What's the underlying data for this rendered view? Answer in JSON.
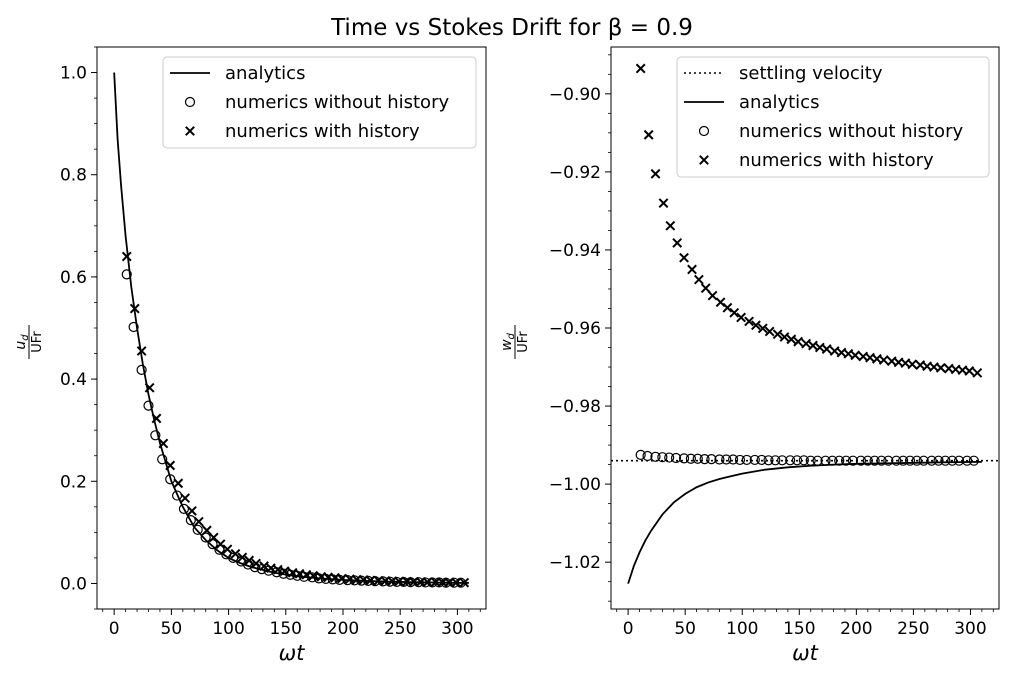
{
  "figure": {
    "title": "Time vs Stokes Drift for β = 0.9"
  },
  "chart_data": [
    {
      "type": "line",
      "xlabel": "ωt",
      "ylabel": "u_d / UFr",
      "xlim": [
        -15,
        325
      ],
      "ylim": [
        -0.05,
        1.05
      ],
      "xticks": [
        0,
        50,
        100,
        150,
        200,
        250,
        300
      ],
      "yticks": [
        0.0,
        0.2,
        0.4,
        0.6,
        0.8,
        1.0
      ],
      "ytick_labels": [
        "0.0",
        "0.2",
        "0.4",
        "0.6",
        "0.8",
        "1.0"
      ],
      "grid": false,
      "legend": "top-right",
      "series": [
        {
          "name": "analytics",
          "kind": "line",
          "x": [
            0,
            3,
            6,
            10,
            15,
            20,
            25,
            30,
            35,
            40,
            50,
            60,
            70,
            80,
            90,
            100,
            110,
            120,
            140,
            160,
            180,
            200,
            220,
            240,
            260,
            280,
            300,
            310
          ],
          "y": [
            1.0,
            0.87,
            0.78,
            0.68,
            0.58,
            0.5,
            0.43,
            0.37,
            0.32,
            0.275,
            0.2,
            0.15,
            0.11,
            0.085,
            0.065,
            0.05,
            0.04,
            0.032,
            0.021,
            0.014,
            0.01,
            0.007,
            0.005,
            0.0035,
            0.0025,
            0.0018,
            0.0012,
            0.001
          ]
        },
        {
          "name": "numerics without history",
          "kind": "circle",
          "x": [
            11,
            17,
            24,
            30,
            36,
            42,
            49,
            55,
            61,
            67,
            73,
            80,
            86,
            92,
            98,
            104,
            111,
            117,
            123,
            129,
            135,
            142,
            148,
            154,
            160,
            166,
            173,
            179,
            185,
            191,
            197,
            204,
            210,
            216,
            222,
            228,
            235,
            241,
            247,
            253,
            259,
            266,
            272,
            278,
            284,
            290,
            297,
            303
          ],
          "y": [
            0.605,
            0.502,
            0.418,
            0.348,
            0.29,
            0.243,
            0.204,
            0.172,
            0.146,
            0.124,
            0.105,
            0.09,
            0.077,
            0.066,
            0.057,
            0.05,
            0.043,
            0.037,
            0.032,
            0.028,
            0.025,
            0.022,
            0.019,
            0.017,
            0.015,
            0.013,
            0.012,
            0.01,
            0.009,
            0.008,
            0.007,
            0.0065,
            0.006,
            0.0055,
            0.005,
            0.0045,
            0.004,
            0.0035,
            0.003,
            0.003,
            0.0025,
            0.0025,
            0.002,
            0.002,
            0.002,
            0.0015,
            0.0015,
            0.0015
          ]
        },
        {
          "name": "numerics with history",
          "kind": "cross",
          "x": [
            11,
            18,
            24,
            31,
            37,
            43,
            49,
            56,
            62,
            68,
            74,
            81,
            87,
            93,
            99,
            106,
            112,
            118,
            124,
            131,
            137,
            143,
            149,
            156,
            162,
            168,
            174,
            181,
            187,
            193,
            199,
            206,
            212,
            218,
            224,
            231,
            237,
            243,
            249,
            256,
            262,
            268,
            274,
            281,
            287,
            293,
            299,
            306
          ],
          "y": [
            0.64,
            0.538,
            0.455,
            0.383,
            0.323,
            0.274,
            0.231,
            0.196,
            0.167,
            0.142,
            0.121,
            0.104,
            0.09,
            0.077,
            0.067,
            0.058,
            0.051,
            0.045,
            0.039,
            0.034,
            0.03,
            0.027,
            0.024,
            0.021,
            0.019,
            0.017,
            0.015,
            0.013,
            0.012,
            0.011,
            0.0095,
            0.0085,
            0.0075,
            0.007,
            0.006,
            0.0055,
            0.005,
            0.0045,
            0.004,
            0.0037,
            0.0033,
            0.003,
            0.0027,
            0.0025,
            0.0022,
            0.002,
            0.0018,
            0.0016
          ]
        }
      ]
    },
    {
      "type": "line",
      "xlabel": "ωt",
      "ylabel": "w_d / UFr",
      "xlim": [
        -15,
        325
      ],
      "ylim": [
        -1.032,
        -0.888
      ],
      "xticks": [
        0,
        50,
        100,
        150,
        200,
        250,
        300
      ],
      "yticks": [
        -1.02,
        -1.0,
        -0.98,
        -0.96,
        -0.94,
        -0.92,
        -0.9
      ],
      "ytick_labels": [
        "−1.02",
        "−1.00",
        "−0.98",
        "−0.96",
        "−0.94",
        "−0.92",
        "−0.90"
      ],
      "grid": false,
      "legend": "top-right",
      "series": [
        {
          "name": "settling velocity",
          "kind": "dotted",
          "x": [
            -15,
            325
          ],
          "y": [
            -0.994,
            -0.994
          ]
        },
        {
          "name": "analytics",
          "kind": "line",
          "x": [
            0,
            5,
            10,
            15,
            20,
            30,
            40,
            50,
            60,
            70,
            80,
            90,
            100,
            110,
            120,
            140,
            160,
            180,
            200,
            240,
            280,
            310
          ],
          "y": [
            -1.0255,
            -1.021,
            -1.0175,
            -1.0145,
            -1.012,
            -1.0078,
            -1.0047,
            -1.0025,
            -1.0008,
            -0.9996,
            -0.9987,
            -0.998,
            -0.9973,
            -0.9968,
            -0.9963,
            -0.9957,
            -0.9953,
            -0.995,
            -0.9948,
            -0.9946,
            -0.9944,
            -0.9943
          ]
        },
        {
          "name": "numerics without history",
          "kind": "circle",
          "x": [
            11,
            17,
            24,
            30,
            36,
            42,
            49,
            55,
            61,
            67,
            73,
            80,
            86,
            92,
            98,
            104,
            111,
            117,
            123,
            129,
            135,
            142,
            148,
            154,
            160,
            166,
            173,
            179,
            185,
            191,
            197,
            204,
            210,
            216,
            222,
            228,
            235,
            241,
            247,
            253,
            259,
            266,
            272,
            278,
            284,
            290,
            297,
            303
          ],
          "y": [
            -0.9925,
            -0.9928,
            -0.993,
            -0.9931,
            -0.9932,
            -0.9933,
            -0.9934,
            -0.9935,
            -0.9935,
            -0.9936,
            -0.9936,
            -0.9937,
            -0.9937,
            -0.9937,
            -0.9938,
            -0.9938,
            -0.9938,
            -0.9938,
            -0.9939,
            -0.9939,
            -0.9939,
            -0.9939,
            -0.9939,
            -0.9939,
            -0.994,
            -0.994,
            -0.994,
            -0.994,
            -0.994,
            -0.994,
            -0.994,
            -0.994,
            -0.994,
            -0.994,
            -0.994,
            -0.994,
            -0.994,
            -0.994,
            -0.994,
            -0.994,
            -0.994,
            -0.994,
            -0.994,
            -0.994,
            -0.994,
            -0.994,
            -0.994,
            -0.994
          ]
        },
        {
          "name": "numerics with history",
          "kind": "cross",
          "x": [
            11,
            18,
            24,
            31,
            37,
            43,
            49,
            56,
            62,
            68,
            74,
            81,
            87,
            93,
            99,
            106,
            112,
            118,
            124,
            131,
            137,
            143,
            149,
            156,
            162,
            168,
            174,
            181,
            187,
            193,
            199,
            206,
            212,
            218,
            224,
            231,
            237,
            243,
            249,
            256,
            262,
            268,
            274,
            281,
            287,
            293,
            299,
            306
          ],
          "y": [
            -0.8935,
            -0.9105,
            -0.9205,
            -0.928,
            -0.9338,
            -0.9382,
            -0.942,
            -0.945,
            -0.9476,
            -0.9498,
            -0.9517,
            -0.9534,
            -0.9548,
            -0.9561,
            -0.9573,
            -0.9583,
            -0.9593,
            -0.9601,
            -0.9609,
            -0.9616,
            -0.9623,
            -0.9629,
            -0.9635,
            -0.964,
            -0.9645,
            -0.965,
            -0.9654,
            -0.9659,
            -0.9663,
            -0.9666,
            -0.967,
            -0.9673,
            -0.9676,
            -0.9679,
            -0.9682,
            -0.9685,
            -0.9688,
            -0.969,
            -0.9693,
            -0.9695,
            -0.9698,
            -0.97,
            -0.9702,
            -0.9704,
            -0.9706,
            -0.9708,
            -0.971,
            -0.9715
          ]
        }
      ]
    }
  ]
}
